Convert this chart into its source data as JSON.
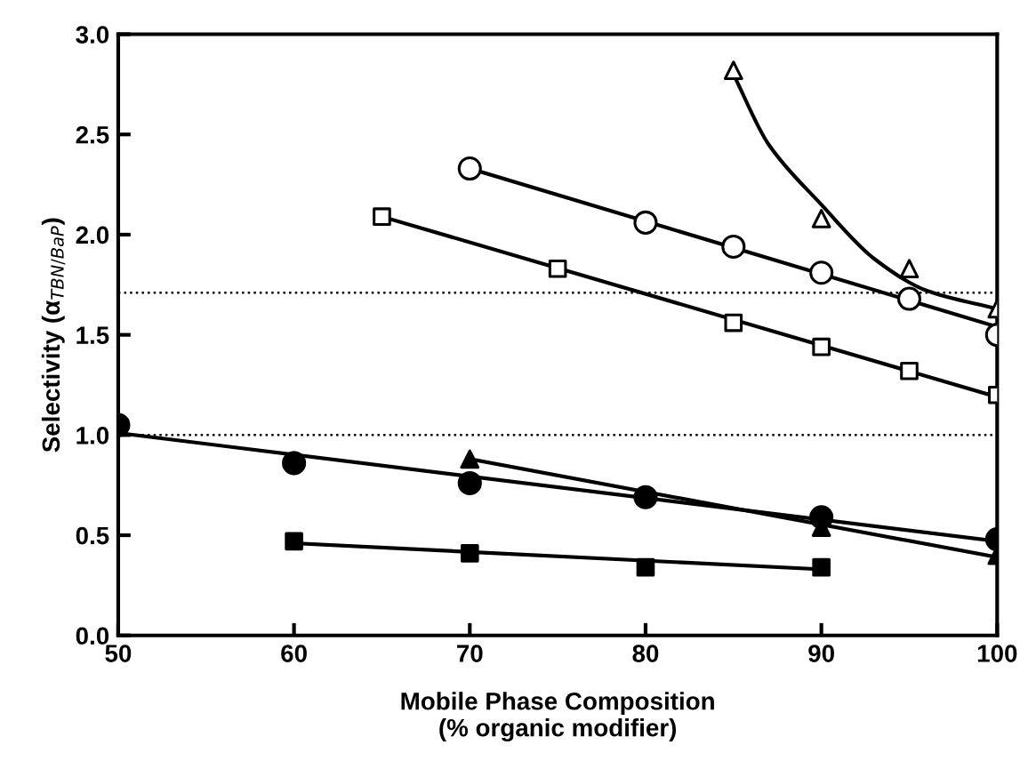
{
  "chart_data": {
    "type": "scatter",
    "xlabel": "Mobile Phase Composition\n(% organic modifier)",
    "ylabel": "Selectivity (α$_{TBN/BaP}$)",
    "xlim": [
      50,
      100
    ],
    "ylim": [
      0,
      3
    ],
    "xticks": [
      50,
      60,
      70,
      80,
      90,
      100
    ],
    "yticks": [
      {
        "value": 0,
        "label": "0.0"
      },
      {
        "value": 0.5,
        "label": "0.5"
      },
      {
        "value": 1,
        "label": "1.0"
      },
      {
        "value": 1.5,
        "label": "1.5"
      },
      {
        "value": 2,
        "label": "2.0"
      },
      {
        "value": 2.5,
        "label": "2.5"
      },
      {
        "value": 3,
        "label": "3.0"
      }
    ],
    "grid": false,
    "legend": false,
    "ref_lines": [
      {
        "axis": "y",
        "value": 1.0,
        "line_style": "dotted",
        "color": "#000000"
      },
      {
        "axis": "y",
        "value": 1.71,
        "line_style": "dotted",
        "color": "#000000"
      }
    ],
    "series": [
      {
        "marker": "triangle",
        "color": "#ffffff",
        "x": [
          85,
          90,
          95,
          100
        ],
        "values": [
          2.82,
          2.08,
          1.83,
          1.63
        ]
      },
      {
        "type": "line",
        "marker": "none",
        "color": "#000000",
        "x": [
          85,
          87,
          90,
          93,
          96,
          100
        ],
        "values": [
          2.8,
          2.45,
          2.15,
          1.88,
          1.72,
          1.63
        ]
      },
      {
        "marker": "circle",
        "color": "#ffffff",
        "x": [
          70,
          80,
          85,
          90,
          95,
          100
        ],
        "values": [
          2.33,
          2.06,
          1.94,
          1.81,
          1.68,
          1.5
        ]
      },
      {
        "type": "line",
        "marker": "none",
        "color": "#000000",
        "x": [
          70,
          100
        ],
        "values": [
          2.33,
          1.54
        ]
      },
      {
        "marker": "square",
        "color": "#ffffff",
        "x": [
          65,
          75,
          85,
          90,
          95,
          100
        ],
        "values": [
          2.09,
          1.83,
          1.56,
          1.44,
          1.32,
          1.2
        ]
      },
      {
        "type": "line",
        "marker": "none",
        "color": "#000000",
        "x": [
          65,
          100
        ],
        "values": [
          2.09,
          1.19
        ]
      },
      {
        "marker": "circle",
        "color": "#000000",
        "x": [
          50,
          60,
          70,
          80,
          90,
          100
        ],
        "values": [
          1.05,
          0.86,
          0.76,
          0.69,
          0.59,
          0.48
        ]
      },
      {
        "type": "line",
        "marker": "none",
        "color": "#000000",
        "x": [
          50,
          100
        ],
        "values": [
          1.01,
          0.47
        ]
      },
      {
        "marker": "triangle",
        "color": "#000000",
        "x": [
          70,
          80,
          90,
          100
        ],
        "values": [
          0.88,
          null,
          0.54,
          0.4
        ]
      },
      {
        "type": "line",
        "marker": "none",
        "color": "#000000",
        "x": [
          70,
          100
        ],
        "values": [
          0.88,
          0.39
        ]
      },
      {
        "marker": "square",
        "color": "#000000",
        "x": [
          60,
          70,
          80,
          90
        ],
        "values": [
          0.47,
          0.41,
          0.34,
          0.34
        ]
      },
      {
        "type": "line",
        "marker": "none",
        "color": "#000000",
        "x": [
          60,
          90
        ],
        "values": [
          0.46,
          0.33
        ]
      }
    ]
  }
}
